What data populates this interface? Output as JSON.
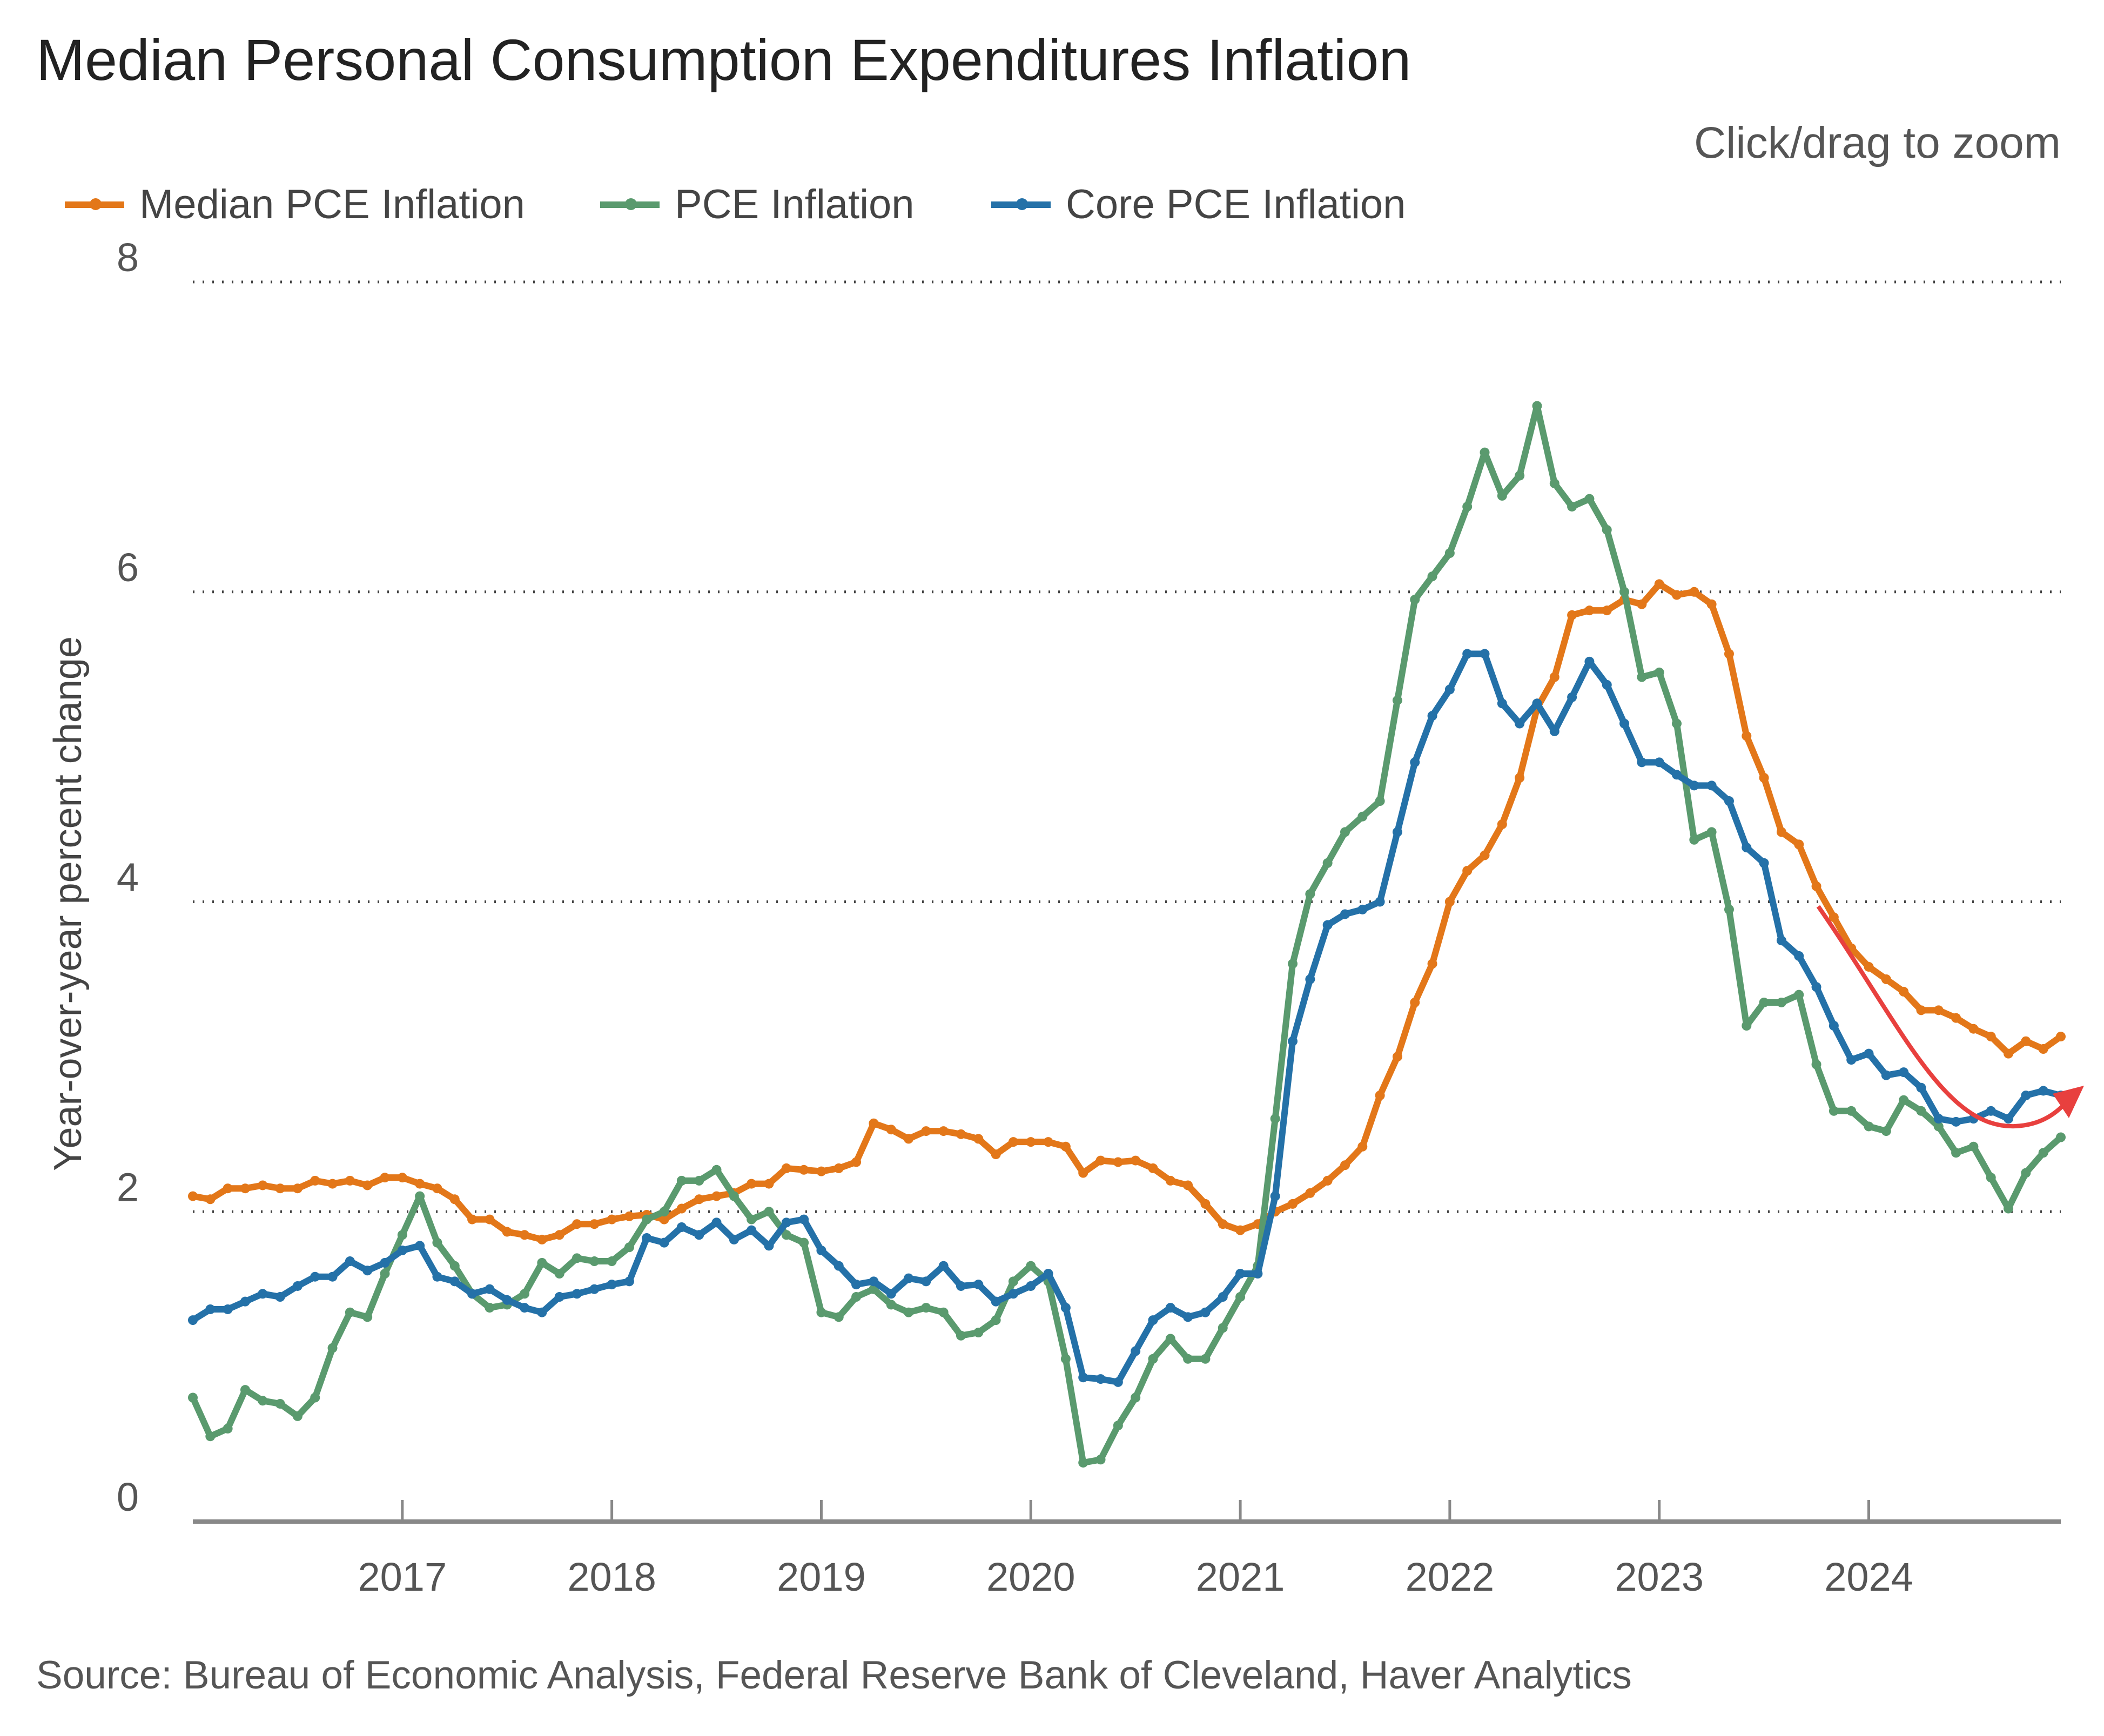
{
  "title": "Median Personal Consumption Expenditures Inflation",
  "zoom_hint": "Click/drag to zoom",
  "source": "Source: Bureau of Economic Analysis, Federal Reserve Bank of Cleveland, Haver Analytics",
  "chart_data": {
    "type": "line",
    "title": "Median Personal Consumption Expenditures Inflation",
    "xlabel": "",
    "ylabel": "Year-over-year percent change",
    "x_start": "2016-01",
    "x_end": "2024-12",
    "frequency": "monthly",
    "xticks": [
      "2017",
      "2018",
      "2019",
      "2020",
      "2021",
      "2022",
      "2023",
      "2024"
    ],
    "yticks": [
      "0",
      "2",
      "4",
      "6",
      "8"
    ],
    "ylim": [
      0,
      8
    ],
    "grid": "horizontal dotted",
    "legend_position": "top-left",
    "annotation": "red curved arrow indicating downtrend then upturn in 2024",
    "series": [
      {
        "name": "Median PCE Inflation",
        "color": "#e37719",
        "values": [
          2.1,
          2.08,
          2.15,
          2.15,
          2.17,
          2.15,
          2.15,
          2.2,
          2.18,
          2.2,
          2.17,
          2.22,
          2.22,
          2.18,
          2.15,
          2.08,
          1.95,
          1.95,
          1.87,
          1.85,
          1.82,
          1.85,
          1.92,
          1.92,
          1.95,
          1.97,
          1.98,
          1.95,
          2.02,
          2.08,
          2.1,
          2.12,
          2.18,
          2.18,
          2.28,
          2.27,
          2.26,
          2.28,
          2.32,
          2.57,
          2.53,
          2.47,
          2.52,
          2.52,
          2.5,
          2.47,
          2.37,
          2.45,
          2.45,
          2.45,
          2.42,
          2.25,
          2.33,
          2.32,
          2.33,
          2.28,
          2.2,
          2.17,
          2.05,
          1.92,
          1.88,
          1.92,
          2.0,
          2.05,
          2.12,
          2.2,
          2.3,
          2.42,
          2.75,
          3.0,
          3.35,
          3.6,
          4.0,
          4.2,
          4.3,
          4.5,
          4.8,
          5.25,
          5.45,
          5.85,
          5.88,
          5.88,
          5.95,
          5.92,
          6.05,
          5.98,
          6.0,
          5.92,
          5.6,
          5.07,
          4.8,
          4.45,
          4.37,
          4.1,
          3.9,
          3.7,
          3.58,
          3.5,
          3.42,
          3.3,
          3.3,
          3.25,
          3.18,
          3.13,
          3.02,
          3.1,
          3.05,
          3.13
        ]
      },
      {
        "name": "PCE Inflation",
        "color": "#5a9a6e",
        "values": [
          0.8,
          0.55,
          0.6,
          0.85,
          0.78,
          0.76,
          0.68,
          0.8,
          1.12,
          1.35,
          1.32,
          1.6,
          1.85,
          2.1,
          1.8,
          1.65,
          1.47,
          1.38,
          1.4,
          1.47,
          1.67,
          1.6,
          1.7,
          1.68,
          1.68,
          1.77,
          1.95,
          2.0,
          2.2,
          2.2,
          2.27,
          2.1,
          1.95,
          2.0,
          1.85,
          1.8,
          1.35,
          1.32,
          1.45,
          1.5,
          1.4,
          1.35,
          1.38,
          1.35,
          1.2,
          1.22,
          1.3,
          1.55,
          1.65,
          1.55,
          1.05,
          0.38,
          0.4,
          0.62,
          0.8,
          1.05,
          1.18,
          1.05,
          1.05,
          1.25,
          1.45,
          1.65,
          2.6,
          3.6,
          4.05,
          4.25,
          4.45,
          4.55,
          4.65,
          5.3,
          5.95,
          6.1,
          6.25,
          6.55,
          6.9,
          6.62,
          6.75,
          7.2,
          6.7,
          6.55,
          6.6,
          6.4,
          6.0,
          5.45,
          5.48,
          5.15,
          4.4,
          4.45,
          3.95,
          3.2,
          3.35,
          3.35,
          3.4,
          2.95,
          2.65,
          2.65,
          2.55,
          2.52,
          2.72,
          2.65,
          2.55,
          2.38,
          2.42,
          2.22,
          2.02,
          2.25,
          2.38,
          2.48
        ]
      },
      {
        "name": "Core PCE Inflation",
        "color": "#2471a8",
        "values": [
          1.3,
          1.37,
          1.37,
          1.42,
          1.47,
          1.45,
          1.52,
          1.58,
          1.58,
          1.68,
          1.62,
          1.67,
          1.75,
          1.78,
          1.58,
          1.55,
          1.47,
          1.5,
          1.43,
          1.38,
          1.35,
          1.45,
          1.47,
          1.5,
          1.53,
          1.55,
          1.83,
          1.8,
          1.9,
          1.85,
          1.93,
          1.82,
          1.88,
          1.78,
          1.93,
          1.95,
          1.75,
          1.65,
          1.53,
          1.55,
          1.47,
          1.57,
          1.55,
          1.65,
          1.52,
          1.53,
          1.42,
          1.47,
          1.52,
          1.6,
          1.38,
          0.93,
          0.92,
          0.9,
          1.1,
          1.3,
          1.38,
          1.32,
          1.35,
          1.45,
          1.6,
          1.6,
          2.1,
          3.1,
          3.5,
          3.85,
          3.92,
          3.95,
          4.0,
          4.45,
          4.9,
          5.2,
          5.37,
          5.6,
          5.6,
          5.28,
          5.15,
          5.28,
          5.1,
          5.32,
          5.55,
          5.4,
          5.15,
          4.9,
          4.9,
          4.82,
          4.75,
          4.75,
          4.65,
          4.35,
          4.25,
          3.75,
          3.65,
          3.45,
          3.2,
          2.98,
          3.02,
          2.88,
          2.9,
          2.8,
          2.6,
          2.58,
          2.6,
          2.65,
          2.6,
          2.75,
          2.78,
          2.75
        ]
      }
    ]
  }
}
